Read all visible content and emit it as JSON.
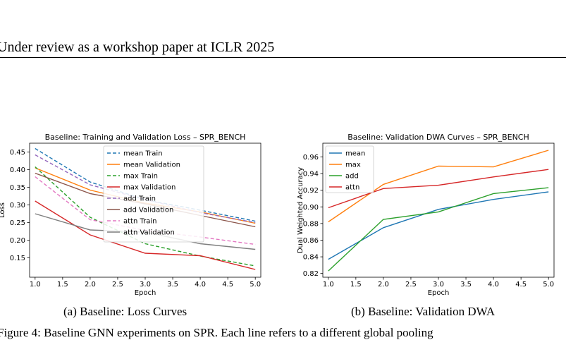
{
  "header": {
    "text": "Under review as a workshop paper at ICLR 2025"
  },
  "captions": {
    "a": "(a)  Baseline: Loss Curves",
    "b": "(b)  Baseline: Validation DWA",
    "figure": "Figure 4: Baseline GNN experiments on SPR. Each line refers to a different global pooling"
  },
  "chart_data": [
    {
      "type": "line",
      "title": "Baseline: Training and Validation Loss – SPR_BENCH",
      "xlabel": "Epoch",
      "ylabel": "Loss",
      "xlim": [
        0.9,
        5.1
      ],
      "ylim": [
        0.095,
        0.475
      ],
      "xticks": [
        1.0,
        1.5,
        2.0,
        2.5,
        3.0,
        3.5,
        4.0,
        4.5,
        5.0
      ],
      "yticks": [
        0.15,
        0.2,
        0.25,
        0.3,
        0.35,
        0.4,
        0.45
      ],
      "ytick_decimals": 2,
      "legend_position": "upper-center",
      "grid": false,
      "x": [
        1,
        2,
        3,
        4,
        5
      ],
      "series": [
        {
          "name": "mean Train",
          "color": "#1f77b4",
          "dash": true,
          "values": [
            0.46,
            0.365,
            0.315,
            0.285,
            0.254
          ]
        },
        {
          "name": "mean Validation",
          "color": "#ff7f0e",
          "dash": false,
          "values": [
            0.405,
            0.342,
            0.305,
            0.28,
            0.248
          ]
        },
        {
          "name": "max Train",
          "color": "#2ca02c",
          "dash": true,
          "values": [
            0.408,
            0.265,
            0.19,
            0.155,
            0.127
          ]
        },
        {
          "name": "max Validation",
          "color": "#d62728",
          "dash": false,
          "values": [
            0.311,
            0.215,
            0.163,
            0.156,
            0.117
          ]
        },
        {
          "name": "add Train",
          "color": "#9467bd",
          "dash": true,
          "values": [
            0.442,
            0.357,
            0.315,
            0.278,
            0.25
          ]
        },
        {
          "name": "add Validation",
          "color": "#8c564b",
          "dash": false,
          "values": [
            0.39,
            0.332,
            0.303,
            0.27,
            0.238
          ]
        },
        {
          "name": "attn Train",
          "color": "#e377c2",
          "dash": true,
          "values": [
            0.38,
            0.258,
            0.228,
            0.209,
            0.188
          ]
        },
        {
          "name": "attn Validation",
          "color": "#7f7f7f",
          "dash": false,
          "values": [
            0.275,
            0.229,
            0.223,
            0.19,
            0.174
          ]
        }
      ]
    },
    {
      "type": "line",
      "title": "Baseline: Validation DWA Curves – SPR_BENCH",
      "xlabel": "Epoch",
      "ylabel": "Dual Weighted Accuracy",
      "xlim": [
        0.9,
        5.1
      ],
      "ylim": [
        0.8155,
        0.9765
      ],
      "xticks": [
        1.0,
        1.5,
        2.0,
        2.5,
        3.0,
        3.5,
        4.0,
        4.5,
        5.0
      ],
      "yticks": [
        0.82,
        0.84,
        0.86,
        0.88,
        0.9,
        0.92,
        0.94,
        0.96
      ],
      "ytick_decimals": 2,
      "legend_position": "upper-left",
      "grid": false,
      "x": [
        1,
        2,
        3,
        4,
        5
      ],
      "series": [
        {
          "name": "mean",
          "color": "#1f77b4",
          "dash": false,
          "values": [
            0.837,
            0.875,
            0.897,
            0.909,
            0.918
          ]
        },
        {
          "name": "max",
          "color": "#ff7f0e",
          "dash": false,
          "values": [
            0.882,
            0.927,
            0.949,
            0.948,
            0.968
          ]
        },
        {
          "name": "add",
          "color": "#2ca02c",
          "dash": false,
          "values": [
            0.823,
            0.885,
            0.894,
            0.916,
            0.923
          ]
        },
        {
          "name": "attn",
          "color": "#d62728",
          "dash": false,
          "values": [
            0.899,
            0.922,
            0.926,
            0.936,
            0.945
          ]
        }
      ]
    }
  ]
}
